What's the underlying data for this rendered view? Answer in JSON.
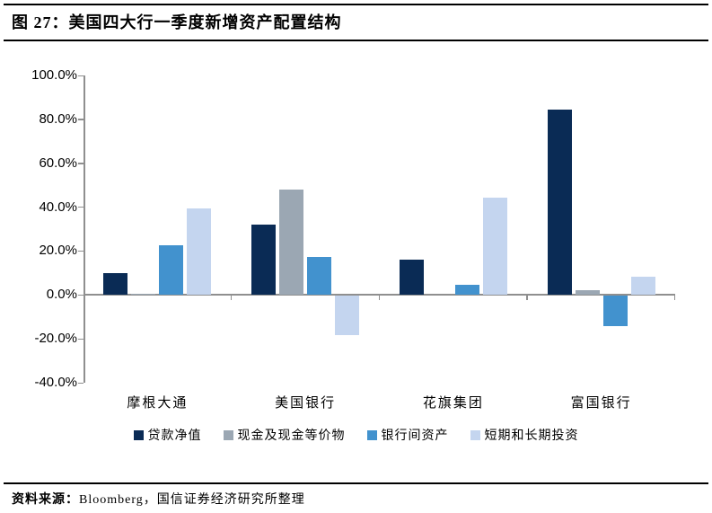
{
  "header": {
    "title": "图 27：美国四大行一季度新增资产配置结构"
  },
  "chart_data": {
    "type": "bar",
    "title": "美国四大行一季度新增资产配置结构",
    "categories": [
      "摩根大通",
      "美国银行",
      "花旗集团",
      "富国银行"
    ],
    "series": [
      {
        "name": "贷款净值",
        "color": "#0A2B55",
        "values": [
          10,
          32,
          16,
          84.5
        ]
      },
      {
        "name": "现金及现金等价物",
        "color": "#9BA7B3",
        "values": [
          0.5,
          48,
          0,
          2
        ]
      },
      {
        "name": "银行间资产",
        "color": "#4292CE",
        "values": [
          22.5,
          17.5,
          4.5,
          -14
        ]
      },
      {
        "name": "短期和长期投资",
        "color": "#C4D5EF",
        "values": [
          39.5,
          -18,
          44.5,
          8.5
        ]
      }
    ],
    "ylim": [
      -40,
      100
    ],
    "y_ticks": [
      {
        "value": 100,
        "label": "100.0%"
      },
      {
        "value": 80,
        "label": "80.0%"
      },
      {
        "value": 60,
        "label": "60.0%"
      },
      {
        "value": 40,
        "label": "40.0%"
      },
      {
        "value": 20,
        "label": "20.0%"
      },
      {
        "value": 0,
        "label": "0.0%"
      },
      {
        "value": -20,
        "label": "-20.0%"
      },
      {
        "value": -40,
        "label": "-40.0%"
      }
    ],
    "grid": false,
    "legend_position": "bottom",
    "axis_color": "#8F8F8F",
    "label_color": "#000000"
  },
  "footer": {
    "source_label": "资料来源：",
    "source_text": "Bloomberg，国信证券经济研究所整理"
  }
}
